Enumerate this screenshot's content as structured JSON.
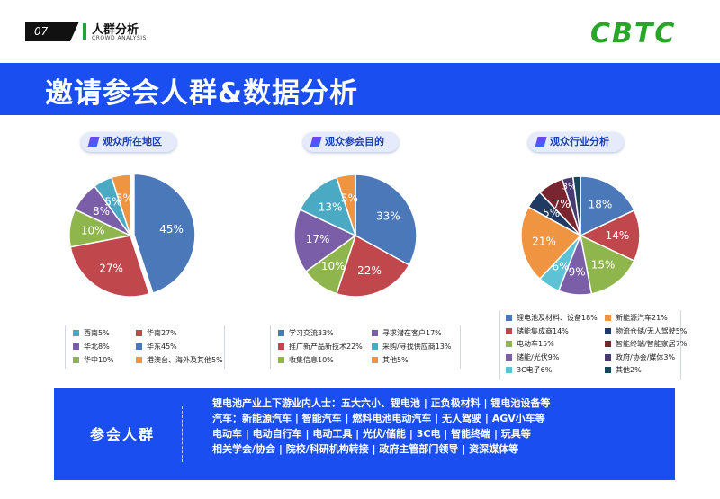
{
  "header": {
    "page_number": "07",
    "section_title": "人群分析",
    "section_subtitle": "CROWD ANALYSIS",
    "logo": "CBTC"
  },
  "banner": {
    "title": "邀请参会人群&数据分析"
  },
  "colors": {
    "blue": "#1a4ef0",
    "green": "#2aa52a",
    "series": [
      "#4a78b8",
      "#c0474c",
      "#8fb54d",
      "#7a5fa8",
      "#4aaac4",
      "#ef9440",
      "#1f3a63",
      "#7a2630",
      "#4a3a73",
      "#5ec2d6",
      "#17465a"
    ]
  },
  "chart_data": [
    {
      "type": "pie",
      "title": "观众所在地区",
      "labels": [
        "华东",
        "华南",
        "华中",
        "华北",
        "西南",
        "港澳台、海外及其他"
      ],
      "values": [
        45,
        27,
        10,
        8,
        5,
        5
      ],
      "value_labels": [
        "45%",
        "27%",
        "10%",
        "8%",
        "5%",
        "5%"
      ],
      "legend": [
        "西南5%",
        "华南27%",
        "华北8%",
        "华东45%",
        "华中10%",
        "港澳台、海外及其他5%"
      ]
    },
    {
      "type": "pie",
      "title": "观众参会目的",
      "labels": [
        "学习交流",
        "推广新产品新技术",
        "收集信息",
        "寻求潜在客户",
        "采购/寻找供应商",
        "其他"
      ],
      "values": [
        33,
        22,
        10,
        17,
        13,
        5
      ],
      "value_labels": [
        "33%",
        "22%",
        "10%",
        "17%",
        "13%",
        "5%"
      ],
      "legend": [
        "学习交流33%",
        "寻求潜在客户17%",
        "推广新产品新技术22%",
        "采购/寻找供应商13%",
        "收集信息10%",
        "其他5%"
      ]
    },
    {
      "type": "pie",
      "title": "观众行业分析",
      "labels": [
        "锂电池及材料、设备",
        "储能集成商",
        "电动车",
        "储能/光伏",
        "3C电子",
        "新能源汽车",
        "物流仓储/无人驾驶",
        "智能终端/智能家居",
        "政府/协会/媒体",
        "其他"
      ],
      "values": [
        18,
        14,
        15,
        9,
        6,
        21,
        5,
        7,
        3,
        2
      ],
      "value_labels": [
        "18%",
        "14%",
        "15%",
        "9%",
        "6%",
        "21%",
        "5%",
        "7%",
        "3%",
        ""
      ],
      "legend": [
        "锂电池及材料、设备18%",
        "新能源汽车21%",
        "储能集成商14%",
        "物流仓储/无人驾驶5%",
        "电动车15%",
        "智能终端/智能家居7%",
        "储能/光伏9%",
        "政府/协会/媒体3%",
        "3C电子6%",
        "其他2%"
      ]
    }
  ],
  "audience": {
    "label": "参会人群",
    "lines": [
      "锂电池产业上下游业内人士：五大六小、锂电池 | 正负极材料 | 锂电池设备等",
      "汽车：新能源汽车 | 智能汽车 | 燃料电池电动汽车 | 无人驾驶 | AGV小车等",
      "电动车 | 电动自行车 | 电动工具 | 光伏/储能 | 3C电 | 智能终端 | 玩具等",
      "相关学会/协会 | 院校/科研机构转接 | 政府主管部门领导 | 资深媒体等"
    ]
  }
}
